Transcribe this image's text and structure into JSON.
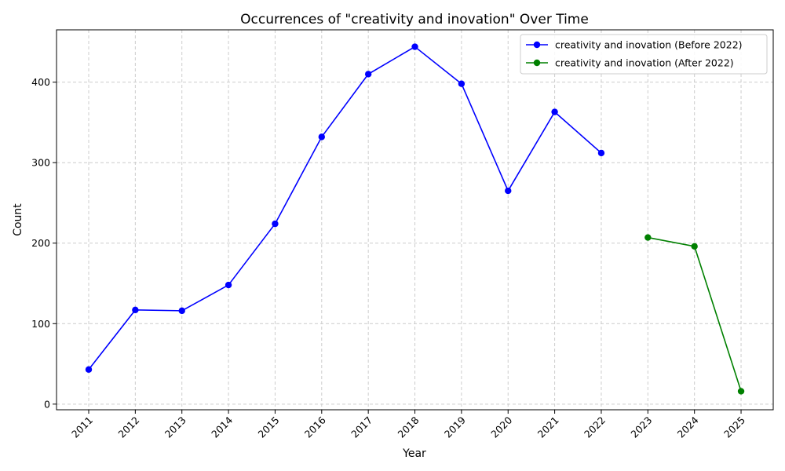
{
  "chart_data": {
    "type": "line",
    "title": "Occurrences of \"creativity and inovation\" Over Time",
    "xlabel": "Year",
    "ylabel": "Count",
    "x_ticks": [
      "2011",
      "2012",
      "2013",
      "2014",
      "2015",
      "2016",
      "2017",
      "2018",
      "2019",
      "2020",
      "2021",
      "2022",
      "2023",
      "2024",
      "2025"
    ],
    "y_ticks": [
      0,
      100,
      200,
      300,
      400
    ],
    "ylim": [
      -7,
      465
    ],
    "grid": true,
    "legend_position": "top-right",
    "series": [
      {
        "name": "creativity and inovation (Before 2022)",
        "color": "#0000ff",
        "marker": "circle",
        "x": [
          "2011",
          "2012",
          "2013",
          "2014",
          "2015",
          "2016",
          "2017",
          "2018",
          "2019",
          "2020",
          "2021",
          "2022"
        ],
        "y": [
          43,
          117,
          116,
          148,
          224,
          332,
          410,
          444,
          398,
          265,
          363,
          312
        ]
      },
      {
        "name": "creativity and inovation (After 2022)",
        "color": "#008000",
        "marker": "circle",
        "x": [
          "2023",
          "2024",
          "2025"
        ],
        "y": [
          207,
          196,
          16
        ]
      }
    ]
  }
}
